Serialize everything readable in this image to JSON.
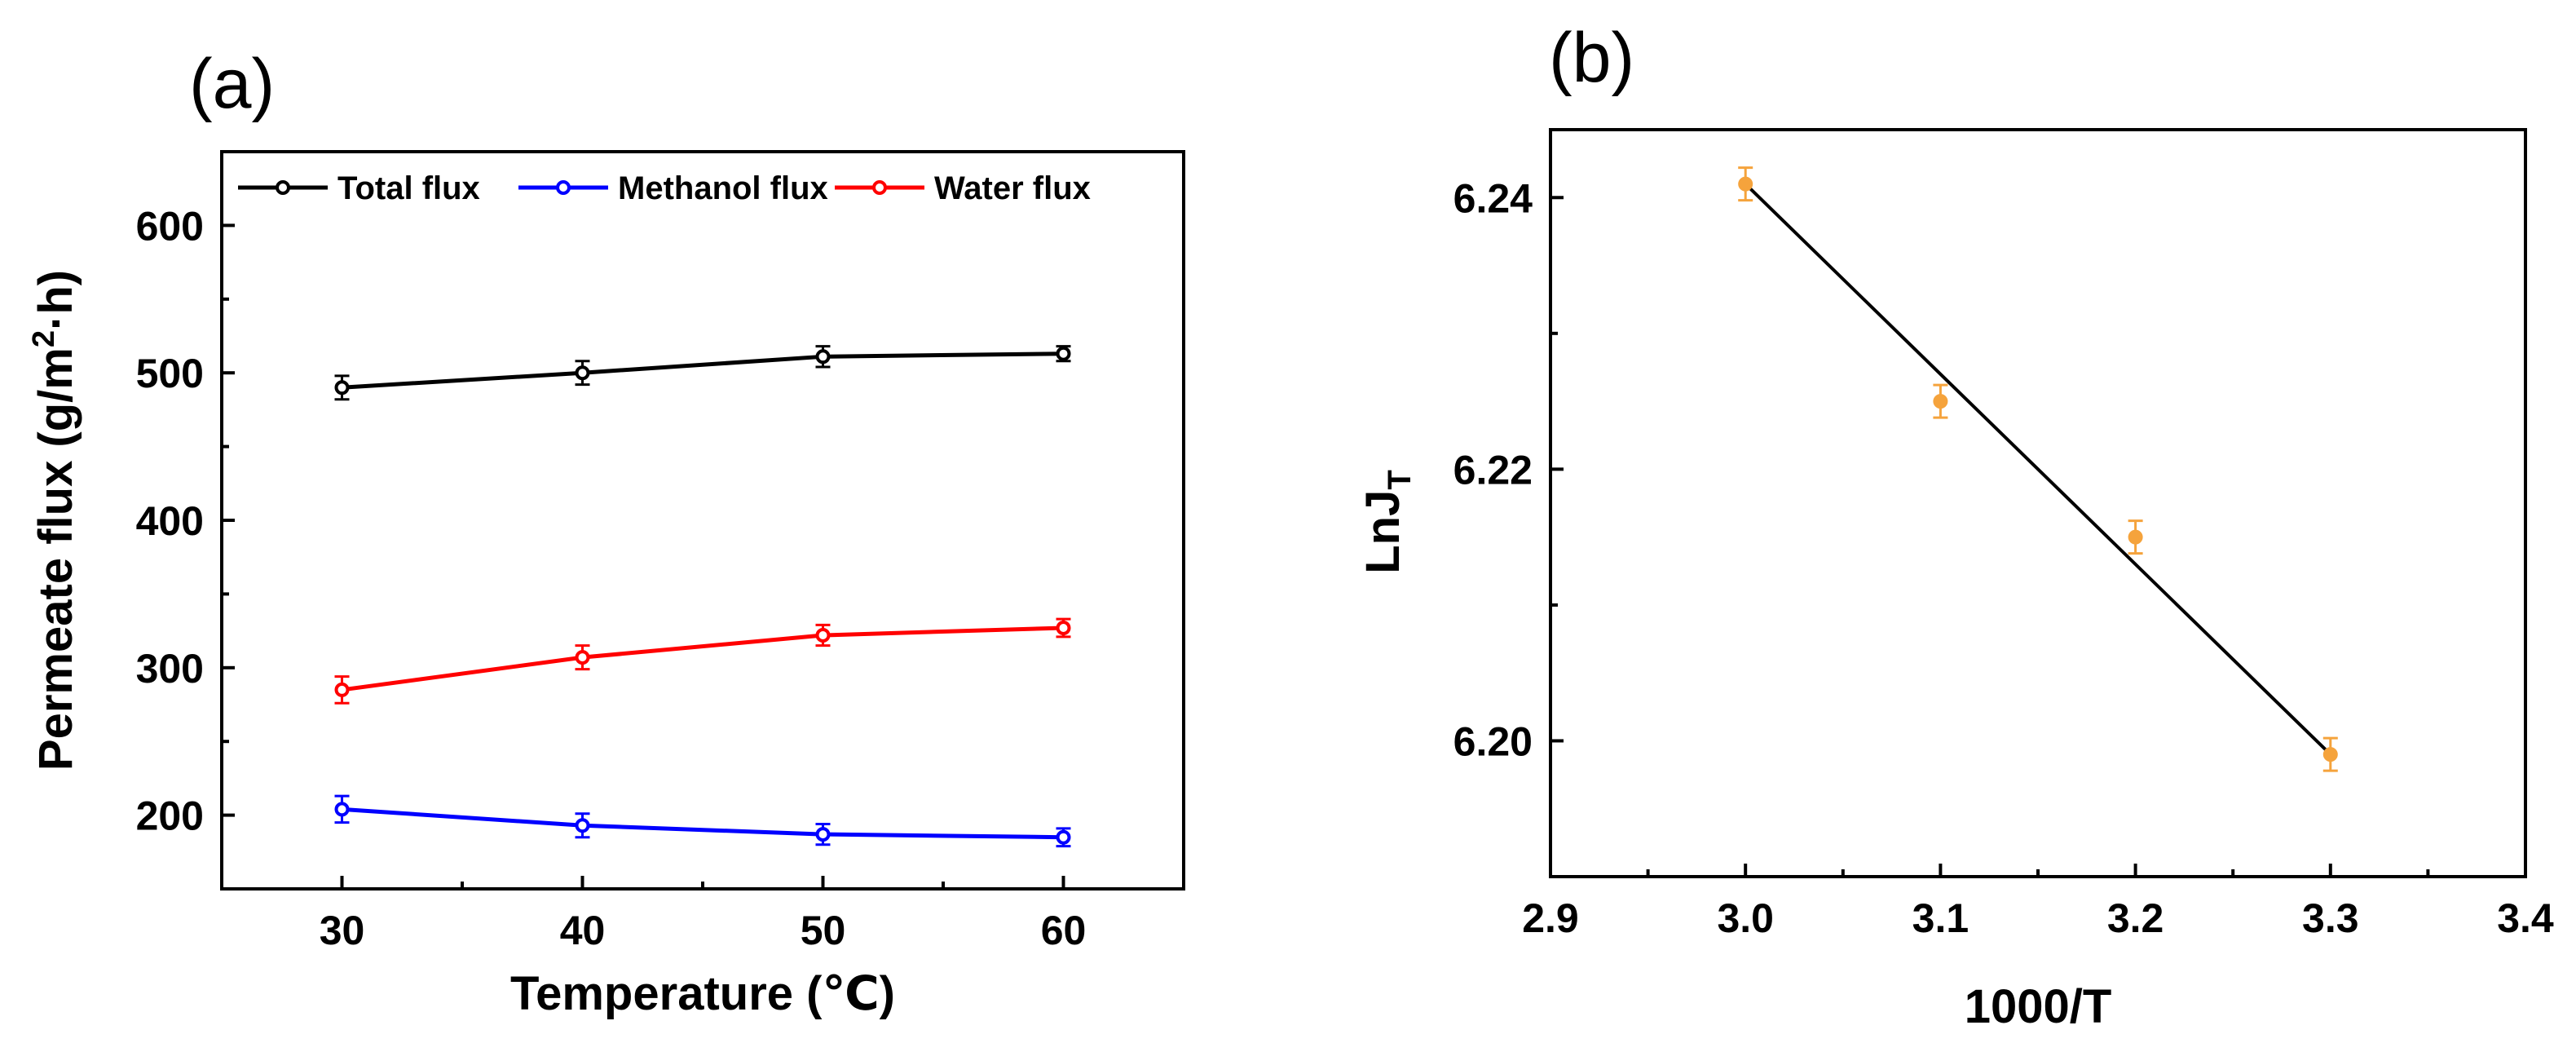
{
  "chart_data": [
    {
      "panel": "(a)",
      "type": "line",
      "xlabel": "Temperature (℃)",
      "ylabel_main": "Permeate flux (g/m",
      "ylabel_sup": "2",
      "ylabel_tail": "·h)",
      "xlim": [
        25,
        65
      ],
      "ylim": [
        150,
        650
      ],
      "xticks": [
        30,
        40,
        50,
        60
      ],
      "yticks": [
        200,
        300,
        400,
        500,
        600
      ],
      "legend_position": "top",
      "x": [
        30,
        40,
        50,
        60
      ],
      "series": [
        {
          "name": "Total flux",
          "color": "#000000",
          "values": [
            490,
            500,
            511,
            513
          ],
          "errors": [
            8,
            8,
            7,
            5
          ]
        },
        {
          "name": "Methanol flux",
          "color": "#0000ff",
          "values": [
            204,
            193,
            187,
            185
          ],
          "errors": [
            9,
            8,
            7,
            6
          ]
        },
        {
          "name": "Water flux",
          "color": "#ff0000",
          "values": [
            285,
            307,
            322,
            327
          ],
          "errors": [
            9,
            8,
            7,
            6
          ]
        }
      ]
    },
    {
      "panel": "(b)",
      "type": "scatter",
      "xlabel": "1000/T",
      "ylabel_main": "LnJ",
      "ylabel_sub": "T",
      "xlim": [
        2.9,
        3.4
      ],
      "ylim": [
        6.19,
        6.245
      ],
      "xticks": [
        "2.9",
        "3.0",
        "3.1",
        "3.2",
        "3.3",
        "3.4"
      ],
      "yticks": [
        "6.20",
        "6.22",
        "6.24"
      ],
      "points": {
        "x": [
          3.0,
          3.1,
          3.2,
          3.3
        ],
        "y": [
          6.241,
          6.225,
          6.215,
          6.199
        ],
        "errors": [
          0.0012,
          0.0012,
          0.0012,
          0.0012
        ],
        "color": "#f5a33c"
      },
      "fit_line": {
        "x": [
          3.0,
          3.3
        ],
        "y": [
          6.241,
          6.199
        ],
        "color": "#000000"
      }
    }
  ]
}
